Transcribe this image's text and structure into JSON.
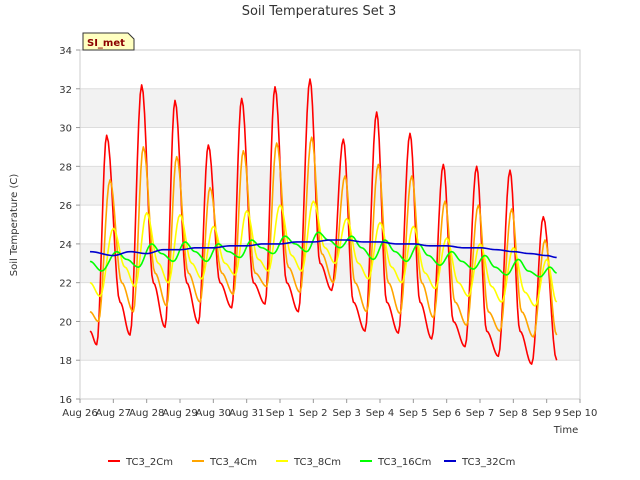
{
  "chart_data": {
    "type": "line",
    "title": "Soil Temperatures Set 3",
    "xlabel": "Time",
    "ylabel": "Soil Temperature (C)",
    "badge": "SI_met",
    "ylim": [
      16,
      34
    ],
    "yticks": [
      16,
      18,
      20,
      22,
      24,
      26,
      28,
      30,
      32,
      34
    ],
    "xlim": [
      0,
      15
    ],
    "xticks": [
      {
        "v": 0,
        "label": "Aug 26"
      },
      {
        "v": 1,
        "label": "Aug 27"
      },
      {
        "v": 2,
        "label": "Aug 28"
      },
      {
        "v": 3,
        "label": "Aug 29"
      },
      {
        "v": 4,
        "label": "Aug 30"
      },
      {
        "v": 5,
        "label": "Aug 31"
      },
      {
        "v": 6,
        "label": "Sep 1"
      },
      {
        "v": 7,
        "label": "Sep 2"
      },
      {
        "v": 8,
        "label": "Sep 3"
      },
      {
        "v": 9,
        "label": "Sep 4"
      },
      {
        "v": 10,
        "label": "Sep 5"
      },
      {
        "v": 11,
        "label": "Sep 6"
      },
      {
        "v": 12,
        "label": "Sep 7"
      },
      {
        "v": 13,
        "label": "Sep 8"
      },
      {
        "v": 14,
        "label": "Sep 9"
      },
      {
        "v": 15,
        "label": "Sep 10"
      }
    ],
    "grid": true,
    "legend_position": "bottom",
    "series": [
      {
        "name": "TC3_2Cm",
        "color": "#ff0000",
        "points": [
          [
            0.3,
            19.5
          ],
          [
            0.5,
            18.8
          ],
          [
            0.8,
            29.6
          ],
          [
            1.2,
            21.0
          ],
          [
            1.5,
            19.3
          ],
          [
            1.85,
            32.2
          ],
          [
            2.2,
            22.0
          ],
          [
            2.55,
            19.7
          ],
          [
            2.85,
            31.4
          ],
          [
            3.2,
            22.0
          ],
          [
            3.55,
            19.9
          ],
          [
            3.85,
            29.1
          ],
          [
            4.2,
            22.0
          ],
          [
            4.55,
            20.7
          ],
          [
            4.85,
            31.5
          ],
          [
            5.2,
            22.0
          ],
          [
            5.55,
            20.9
          ],
          [
            5.85,
            32.1
          ],
          [
            6.2,
            22.0
          ],
          [
            6.55,
            20.5
          ],
          [
            6.9,
            32.5
          ],
          [
            7.2,
            23.0
          ],
          [
            7.55,
            21.6
          ],
          [
            7.9,
            29.4
          ],
          [
            8.2,
            21.0
          ],
          [
            8.55,
            19.5
          ],
          [
            8.9,
            30.8
          ],
          [
            9.2,
            21.0
          ],
          [
            9.55,
            19.4
          ],
          [
            9.9,
            29.7
          ],
          [
            10.2,
            21.0
          ],
          [
            10.55,
            19.1
          ],
          [
            10.9,
            28.1
          ],
          [
            11.2,
            20.0
          ],
          [
            11.55,
            18.7
          ],
          [
            11.9,
            28.0
          ],
          [
            12.2,
            19.5
          ],
          [
            12.55,
            18.2
          ],
          [
            12.9,
            27.8
          ],
          [
            13.2,
            19.5
          ],
          [
            13.55,
            17.8
          ],
          [
            13.9,
            25.4
          ],
          [
            14.3,
            18.0
          ]
        ]
      },
      {
        "name": "TC3_4Cm",
        "color": "#ffa500",
        "points": [
          [
            0.3,
            20.5
          ],
          [
            0.55,
            20.0
          ],
          [
            0.9,
            27.3
          ],
          [
            1.25,
            22.0
          ],
          [
            1.6,
            20.5
          ],
          [
            1.9,
            29.0
          ],
          [
            2.25,
            22.5
          ],
          [
            2.6,
            20.8
          ],
          [
            2.9,
            28.5
          ],
          [
            3.25,
            22.5
          ],
          [
            3.6,
            21.0
          ],
          [
            3.9,
            26.9
          ],
          [
            4.25,
            22.5
          ],
          [
            4.6,
            21.4
          ],
          [
            4.9,
            28.8
          ],
          [
            5.25,
            22.5
          ],
          [
            5.6,
            21.8
          ],
          [
            5.9,
            29.2
          ],
          [
            6.25,
            22.8
          ],
          [
            6.6,
            21.5
          ],
          [
            6.95,
            29.5
          ],
          [
            7.25,
            23.5
          ],
          [
            7.6,
            22.0
          ],
          [
            7.95,
            27.5
          ],
          [
            8.25,
            22.0
          ],
          [
            8.6,
            20.5
          ],
          [
            8.95,
            28.1
          ],
          [
            9.25,
            22.0
          ],
          [
            9.6,
            20.4
          ],
          [
            9.95,
            27.5
          ],
          [
            10.25,
            22.0
          ],
          [
            10.6,
            20.2
          ],
          [
            10.95,
            26.2
          ],
          [
            11.25,
            21.0
          ],
          [
            11.6,
            19.8
          ],
          [
            11.95,
            26.0
          ],
          [
            12.25,
            20.5
          ],
          [
            12.6,
            19.5
          ],
          [
            12.95,
            25.8
          ],
          [
            13.25,
            20.5
          ],
          [
            13.6,
            19.2
          ],
          [
            13.95,
            24.2
          ],
          [
            14.3,
            19.3
          ]
        ]
      },
      {
        "name": "TC3_8Cm",
        "color": "#ffff00",
        "points": [
          [
            0.3,
            22.0
          ],
          [
            0.6,
            21.3
          ],
          [
            1.0,
            24.8
          ],
          [
            1.35,
            22.8
          ],
          [
            1.65,
            21.8
          ],
          [
            2.0,
            25.6
          ],
          [
            2.35,
            23.0
          ],
          [
            2.65,
            22.0
          ],
          [
            3.0,
            25.5
          ],
          [
            3.35,
            23.0
          ],
          [
            3.65,
            22.2
          ],
          [
            4.0,
            24.9
          ],
          [
            4.35,
            23.0
          ],
          [
            4.65,
            22.4
          ],
          [
            5.0,
            25.7
          ],
          [
            5.35,
            23.2
          ],
          [
            5.65,
            22.6
          ],
          [
            6.0,
            26.0
          ],
          [
            6.35,
            23.4
          ],
          [
            6.65,
            22.6
          ],
          [
            7.0,
            26.2
          ],
          [
            7.35,
            23.8
          ],
          [
            7.65,
            23.0
          ],
          [
            8.0,
            25.3
          ],
          [
            8.35,
            23.0
          ],
          [
            8.65,
            22.2
          ],
          [
            9.0,
            25.1
          ],
          [
            9.35,
            22.8
          ],
          [
            9.65,
            22.0
          ],
          [
            10.0,
            24.9
          ],
          [
            10.35,
            22.5
          ],
          [
            10.65,
            21.7
          ],
          [
            11.0,
            24.3
          ],
          [
            11.35,
            22.0
          ],
          [
            11.65,
            21.3
          ],
          [
            12.0,
            24.0
          ],
          [
            12.35,
            21.8
          ],
          [
            12.65,
            21.0
          ],
          [
            13.0,
            23.8
          ],
          [
            13.35,
            21.5
          ],
          [
            13.65,
            20.8
          ],
          [
            14.0,
            23.2
          ],
          [
            14.3,
            21.0
          ]
        ]
      },
      {
        "name": "TC3_16Cm",
        "color": "#00ff00",
        "points": [
          [
            0.3,
            23.1
          ],
          [
            0.65,
            22.6
          ],
          [
            1.1,
            23.6
          ],
          [
            1.4,
            23.2
          ],
          [
            1.75,
            22.8
          ],
          [
            2.15,
            24.0
          ],
          [
            2.45,
            23.5
          ],
          [
            2.8,
            23.1
          ],
          [
            3.15,
            24.1
          ],
          [
            3.45,
            23.6
          ],
          [
            3.8,
            23.1
          ],
          [
            4.15,
            24.0
          ],
          [
            4.45,
            23.6
          ],
          [
            4.8,
            23.3
          ],
          [
            5.15,
            24.2
          ],
          [
            5.45,
            23.8
          ],
          [
            5.8,
            23.5
          ],
          [
            6.15,
            24.4
          ],
          [
            6.45,
            24.0
          ],
          [
            6.8,
            23.6
          ],
          [
            7.15,
            24.6
          ],
          [
            7.45,
            24.2
          ],
          [
            7.8,
            23.8
          ],
          [
            8.15,
            24.4
          ],
          [
            8.45,
            23.8
          ],
          [
            8.8,
            23.2
          ],
          [
            9.15,
            24.2
          ],
          [
            9.45,
            23.6
          ],
          [
            9.8,
            23.1
          ],
          [
            10.15,
            24.0
          ],
          [
            10.45,
            23.4
          ],
          [
            10.8,
            22.9
          ],
          [
            11.15,
            23.6
          ],
          [
            11.45,
            23.1
          ],
          [
            11.8,
            22.7
          ],
          [
            12.15,
            23.4
          ],
          [
            12.45,
            22.8
          ],
          [
            12.8,
            22.4
          ],
          [
            13.15,
            23.2
          ],
          [
            13.45,
            22.6
          ],
          [
            13.8,
            22.3
          ],
          [
            14.1,
            22.8
          ],
          [
            14.3,
            22.5
          ]
        ]
      },
      {
        "name": "TC3_32Cm",
        "color": "#0000cd",
        "points": [
          [
            0.3,
            23.6
          ],
          [
            1.0,
            23.4
          ],
          [
            1.5,
            23.6
          ],
          [
            2.0,
            23.5
          ],
          [
            2.5,
            23.7
          ],
          [
            3.0,
            23.7
          ],
          [
            3.5,
            23.8
          ],
          [
            4.0,
            23.8
          ],
          [
            4.5,
            23.9
          ],
          [
            5.0,
            23.9
          ],
          [
            5.5,
            24.0
          ],
          [
            6.0,
            24.0
          ],
          [
            6.5,
            24.1
          ],
          [
            7.0,
            24.1
          ],
          [
            7.5,
            24.2
          ],
          [
            8.0,
            24.2
          ],
          [
            8.5,
            24.1
          ],
          [
            9.0,
            24.1
          ],
          [
            9.5,
            24.0
          ],
          [
            10.0,
            24.0
          ],
          [
            10.5,
            23.9
          ],
          [
            11.0,
            23.9
          ],
          [
            11.5,
            23.8
          ],
          [
            12.0,
            23.8
          ],
          [
            12.5,
            23.7
          ],
          [
            13.0,
            23.6
          ],
          [
            13.5,
            23.5
          ],
          [
            14.0,
            23.4
          ],
          [
            14.3,
            23.3
          ]
        ]
      }
    ]
  }
}
